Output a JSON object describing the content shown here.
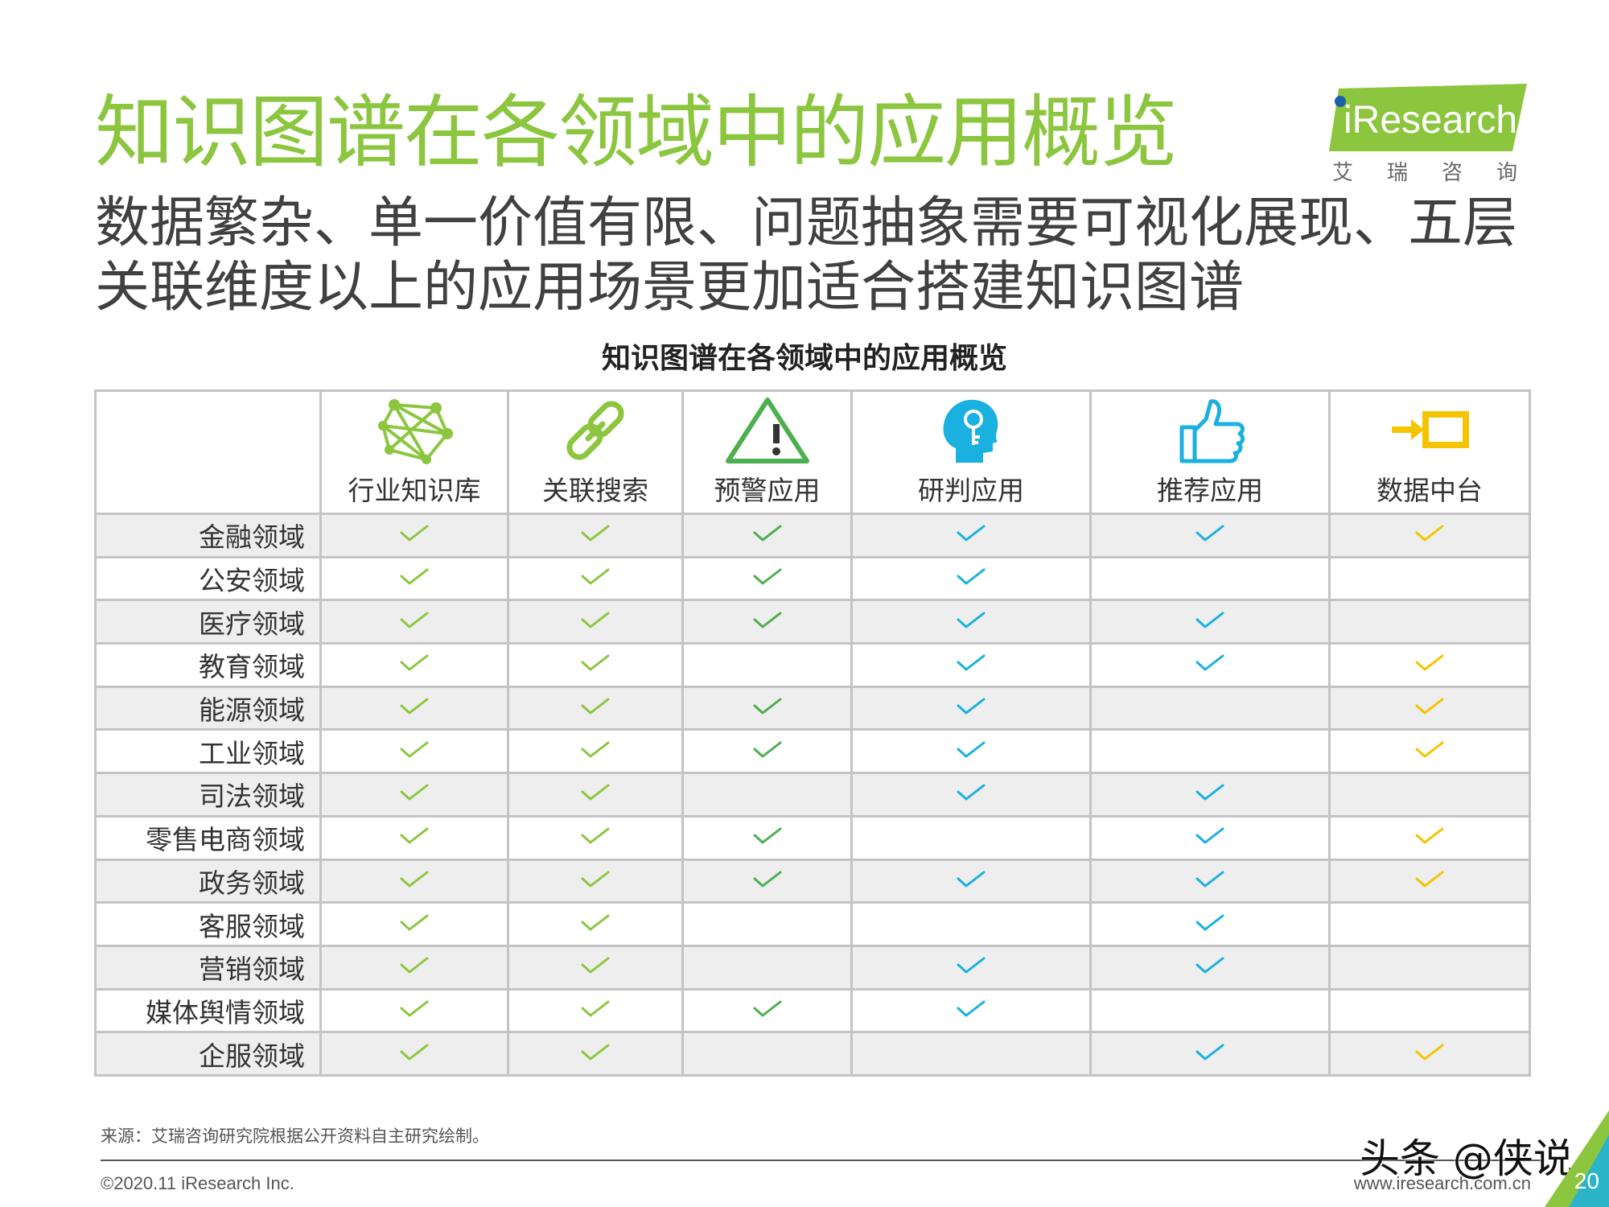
{
  "header": {
    "title": "知识图谱在各领域中的应用概览",
    "subtitle_lines": [
      "数据繁杂、单一价值有限、问题抽象需要可视化展现、五层",
      "关联维度以上的应用场景更加适合搭建知识图谱"
    ]
  },
  "logo": {
    "wordmark": "iResearch",
    "cn": "艾瑞咨询",
    "brand_color": "#8cc63f"
  },
  "table": {
    "title": "知识图谱在各领域中的应用概览",
    "columns": [
      {
        "label": "行业知识库",
        "icon": "network-graph-icon",
        "color": "#8cc63f"
      },
      {
        "label": "关联搜索",
        "icon": "chain-link-icon",
        "color": "#8cc63f"
      },
      {
        "label": "预警应用",
        "icon": "warning-triangle-icon",
        "color": "#4caf50"
      },
      {
        "label": "研判应用",
        "icon": "head-key-icon",
        "color": "#1ab0e0"
      },
      {
        "label": "推荐应用",
        "icon": "thumbs-up-icon",
        "color": "#1ab0e0"
      },
      {
        "label": "数据中台",
        "icon": "arrow-into-box-icon",
        "color": "#f5c400"
      }
    ],
    "rows": [
      {
        "label": "金融领域",
        "checks": [
          true,
          true,
          true,
          true,
          true,
          true
        ]
      },
      {
        "label": "公安领域",
        "checks": [
          true,
          true,
          true,
          true,
          false,
          false
        ]
      },
      {
        "label": "医疗领域",
        "checks": [
          true,
          true,
          true,
          true,
          true,
          false
        ]
      },
      {
        "label": "教育领域",
        "checks": [
          true,
          true,
          false,
          true,
          true,
          true
        ]
      },
      {
        "label": "能源领域",
        "checks": [
          true,
          true,
          true,
          true,
          false,
          true
        ]
      },
      {
        "label": "工业领域",
        "checks": [
          true,
          true,
          true,
          true,
          false,
          true
        ]
      },
      {
        "label": "司法领域",
        "checks": [
          true,
          true,
          false,
          true,
          true,
          false
        ]
      },
      {
        "label": "零售电商领域",
        "checks": [
          true,
          true,
          true,
          false,
          true,
          true
        ]
      },
      {
        "label": "政务领域",
        "checks": [
          true,
          true,
          true,
          true,
          true,
          true
        ]
      },
      {
        "label": "客服领域",
        "checks": [
          true,
          true,
          false,
          false,
          true,
          false
        ]
      },
      {
        "label": "营销领域",
        "checks": [
          true,
          true,
          false,
          true,
          true,
          false
        ]
      },
      {
        "label": "媒体舆情领域",
        "checks": [
          true,
          true,
          true,
          true,
          false,
          false
        ]
      },
      {
        "label": "企服领域",
        "checks": [
          true,
          true,
          false,
          false,
          true,
          true
        ]
      }
    ]
  },
  "footer": {
    "source": "来源：艾瑞咨询研究院根据公开资料自主研究绘制。",
    "copyright": "©2020.11 iResearch Inc.",
    "website": "www.iresearch.com.cn",
    "page_number": "20",
    "watermark": "头条 @侠说"
  }
}
